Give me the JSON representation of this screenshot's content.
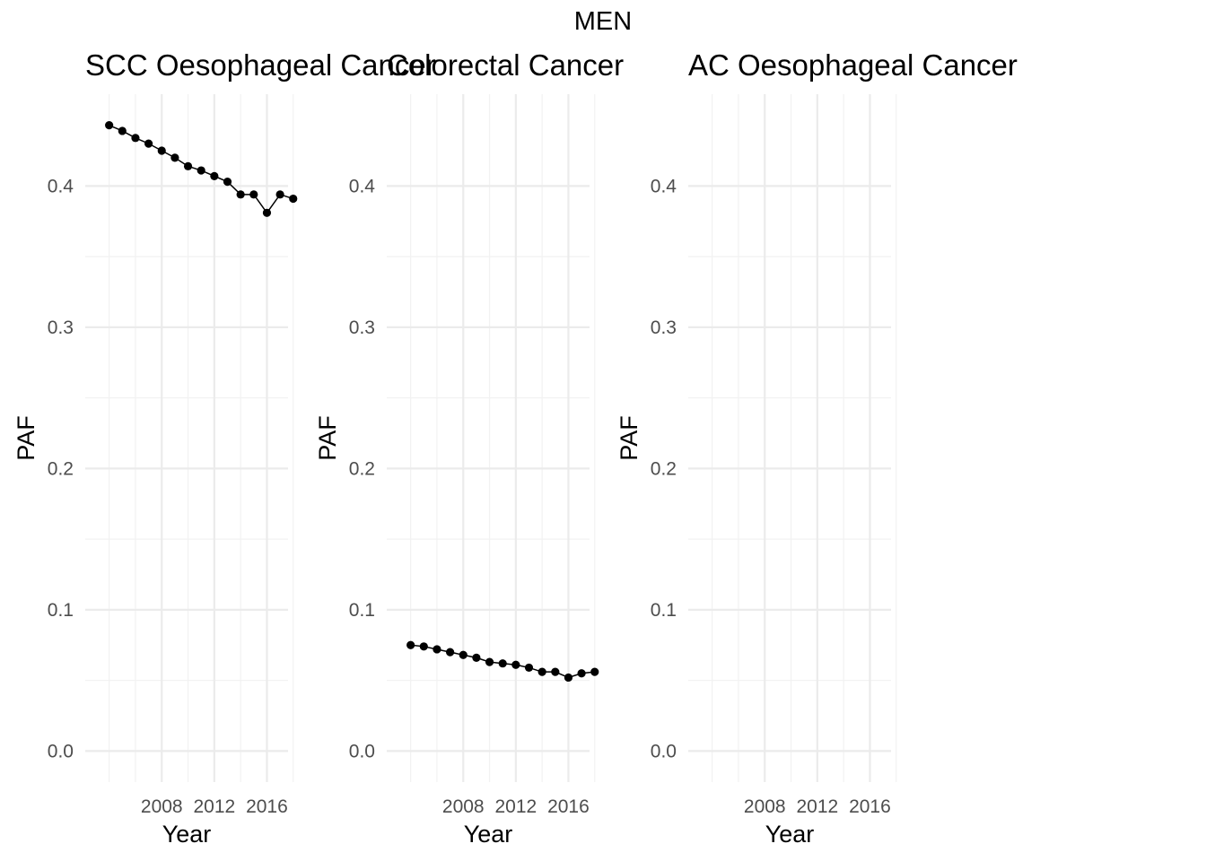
{
  "figure": {
    "title": "MEN"
  },
  "chart_data": [
    {
      "type": "line",
      "title": "SCC Oesophageal Cancer",
      "xlabel": "Year",
      "ylabel": "PAF",
      "x": [
        2004,
        2005,
        2006,
        2007,
        2008,
        2009,
        2010,
        2011,
        2012,
        2013,
        2014,
        2015,
        2016,
        2017,
        2018
      ],
      "values": [
        0.443,
        0.439,
        0.434,
        0.43,
        0.425,
        0.42,
        0.414,
        0.411,
        0.407,
        0.403,
        0.394,
        0.394,
        0.381,
        0.394,
        0.391
      ],
      "xticks": [
        2008,
        2012,
        2016
      ],
      "yticks": [
        0.0,
        0.1,
        0.2,
        0.3,
        0.4
      ],
      "ylim": [
        -0.022,
        0.465
      ],
      "grid": true,
      "line_color": "#000000"
    },
    {
      "type": "line",
      "title": "Colorectal Cancer",
      "xlabel": "Year",
      "ylabel": "PAF",
      "x": [
        2004,
        2005,
        2006,
        2007,
        2008,
        2009,
        2010,
        2011,
        2012,
        2013,
        2014,
        2015,
        2016,
        2017,
        2018
      ],
      "values": [
        0.075,
        0.074,
        0.072,
        0.07,
        0.068,
        0.066,
        0.063,
        0.062,
        0.061,
        0.059,
        0.056,
        0.056,
        0.052,
        0.055,
        0.056
      ],
      "xticks": [
        2008,
        2012,
        2016
      ],
      "yticks": [
        0.0,
        0.1,
        0.2,
        0.3,
        0.4
      ],
      "ylim": [
        -0.022,
        0.465
      ],
      "grid": true,
      "line_color": "#000000"
    },
    {
      "type": "line",
      "title": "AC Oesophageal Cancer",
      "xlabel": "Year",
      "ylabel": "PAF",
      "x": [],
      "values": [],
      "xticks": [
        2008,
        2012,
        2016
      ],
      "yticks": [
        0.0,
        0.1,
        0.2,
        0.3,
        0.4
      ],
      "ylim": [
        -0.022,
        0.465
      ],
      "grid": true,
      "line_color": "#000000"
    }
  ]
}
